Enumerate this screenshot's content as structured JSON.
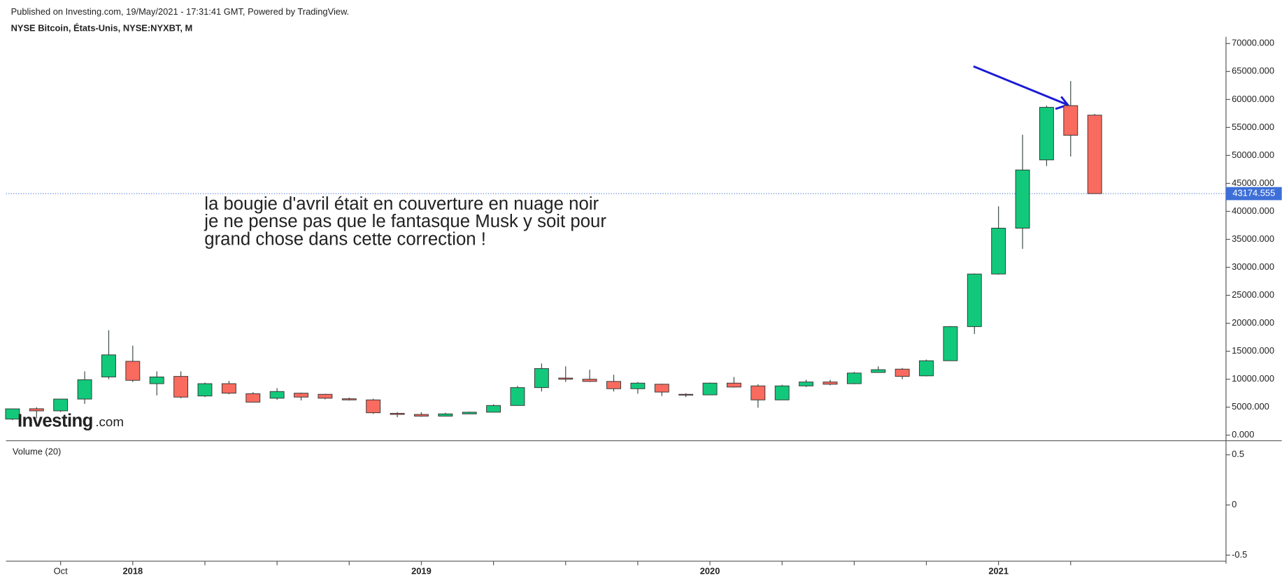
{
  "chart_data": {
    "type": "candlestick",
    "published": "Published on Investing.com, 19/May/2021 - 17:31:41 GMT, Powered by TradingView.",
    "title": "NYSE Bitcoin, États-Unis, NYSE:NYXBT, M",
    "annotation": [
      "la bougie d'avril était en couverture en nuage noir",
      "je ne pense pas que le fantasque Musk y soit pour",
      "grand chose dans cette correction !"
    ],
    "logo": "Investing",
    "logo_suffix": ".com",
    "categories": [
      null,
      null,
      "Oct",
      null,
      null,
      "2018",
      null,
      null,
      null,
      null,
      null,
      null,
      null,
      null,
      null,
      null,
      null,
      "2019",
      null,
      null,
      null,
      null,
      null,
      null,
      null,
      null,
      null,
      null,
      null,
      "2020",
      null,
      null,
      null,
      null,
      null,
      null,
      null,
      null,
      null,
      null,
      null,
      "2021",
      null,
      null,
      null,
      null
    ],
    "series": {
      "open": [
        2870,
        4720,
        4340,
        6450,
        10400,
        13200,
        9200,
        10500,
        7000,
        9200,
        7400,
        6600,
        7500,
        7300,
        6500,
        6300,
        3900,
        3700,
        3400,
        3800,
        4100,
        5300,
        8500,
        10200,
        10000,
        9600,
        8300,
        9100,
        7300,
        7200,
        9300,
        8800,
        6300,
        8800,
        9500,
        9200,
        11200,
        11800,
        10600,
        13300,
        19400,
        28800,
        37000,
        49200,
        58900,
        57200
      ],
      "high": [
        4750,
        4980,
        6470,
        11400,
        18750,
        16000,
        11400,
        11400,
        9400,
        9700,
        7700,
        8400,
        7600,
        7400,
        6700,
        6500,
        4100,
        4100,
        4000,
        4200,
        5500,
        8800,
        12800,
        12300,
        11700,
        10800,
        9500,
        9200,
        7500,
        9400,
        10400,
        9100,
        9000,
        9900,
        9900,
        11300,
        12300,
        12000,
        13500,
        19500,
        28900,
        40900,
        53700,
        58900,
        63300,
        57400
      ],
      "low": [
        2700,
        3000,
        4140,
        5600,
        10000,
        9500,
        7100,
        6600,
        6800,
        7300,
        5900,
        6300,
        6200,
        6400,
        6200,
        3800,
        3200,
        3300,
        3400,
        3800,
        4100,
        5300,
        7800,
        9500,
        9500,
        7800,
        7400,
        7000,
        6800,
        7200,
        8500,
        4900,
        6300,
        8600,
        8900,
        9100,
        11200,
        10000,
        10500,
        13300,
        18100,
        28700,
        33300,
        48100,
        49800,
        43174.555
      ],
      "close": [
        4700,
        4340,
        6450,
        9900,
        14350,
        9800,
        10400,
        6800,
        9200,
        7500,
        5900,
        7800,
        6800,
        6600,
        6300,
        4000,
        3700,
        3400,
        3800,
        4100,
        5300,
        8500,
        11900,
        10000,
        9600,
        8300,
        9300,
        7700,
        7200,
        9300,
        8600,
        6300,
        8800,
        9500,
        9100,
        11100,
        11700,
        10500,
        13300,
        19400,
        28800,
        37000,
        47400,
        58600,
        53600,
        43174.555
      ]
    },
    "up_color": "#12c97b",
    "down_color": "#f96b5f",
    "last_price": 43174.555,
    "last_price_color": "#3d6fd8",
    "ylim": [
      -1000,
      70900
    ],
    "yticks": [
      {
        "value": 0,
        "label": "0.000"
      },
      {
        "value": 5000,
        "label": "5000.000"
      },
      {
        "value": 10000,
        "label": "10000.000"
      },
      {
        "value": 15000,
        "label": "15000.000"
      },
      {
        "value": 20000,
        "label": "20000.000"
      },
      {
        "value": 25000,
        "label": "25000.000"
      },
      {
        "value": 30000,
        "label": "30000.000"
      },
      {
        "value": 35000,
        "label": "35000.000"
      },
      {
        "value": 40000,
        "label": "40000.000"
      },
      {
        "value": 45000,
        "label": "45000.000"
      },
      {
        "value": 50000,
        "label": "50000.000"
      },
      {
        "value": 55000,
        "label": "55000.000"
      },
      {
        "value": 60000,
        "label": "60000.000"
      },
      {
        "value": 65000,
        "label": "65000.000"
      },
      {
        "value": 70000,
        "label": "70000.000"
      }
    ],
    "volume_label": "Volume (20)",
    "volume_ylim": [
      -0.56,
      0.64
    ],
    "volume_yticks": [
      0.5,
      0,
      -0.5
    ]
  }
}
